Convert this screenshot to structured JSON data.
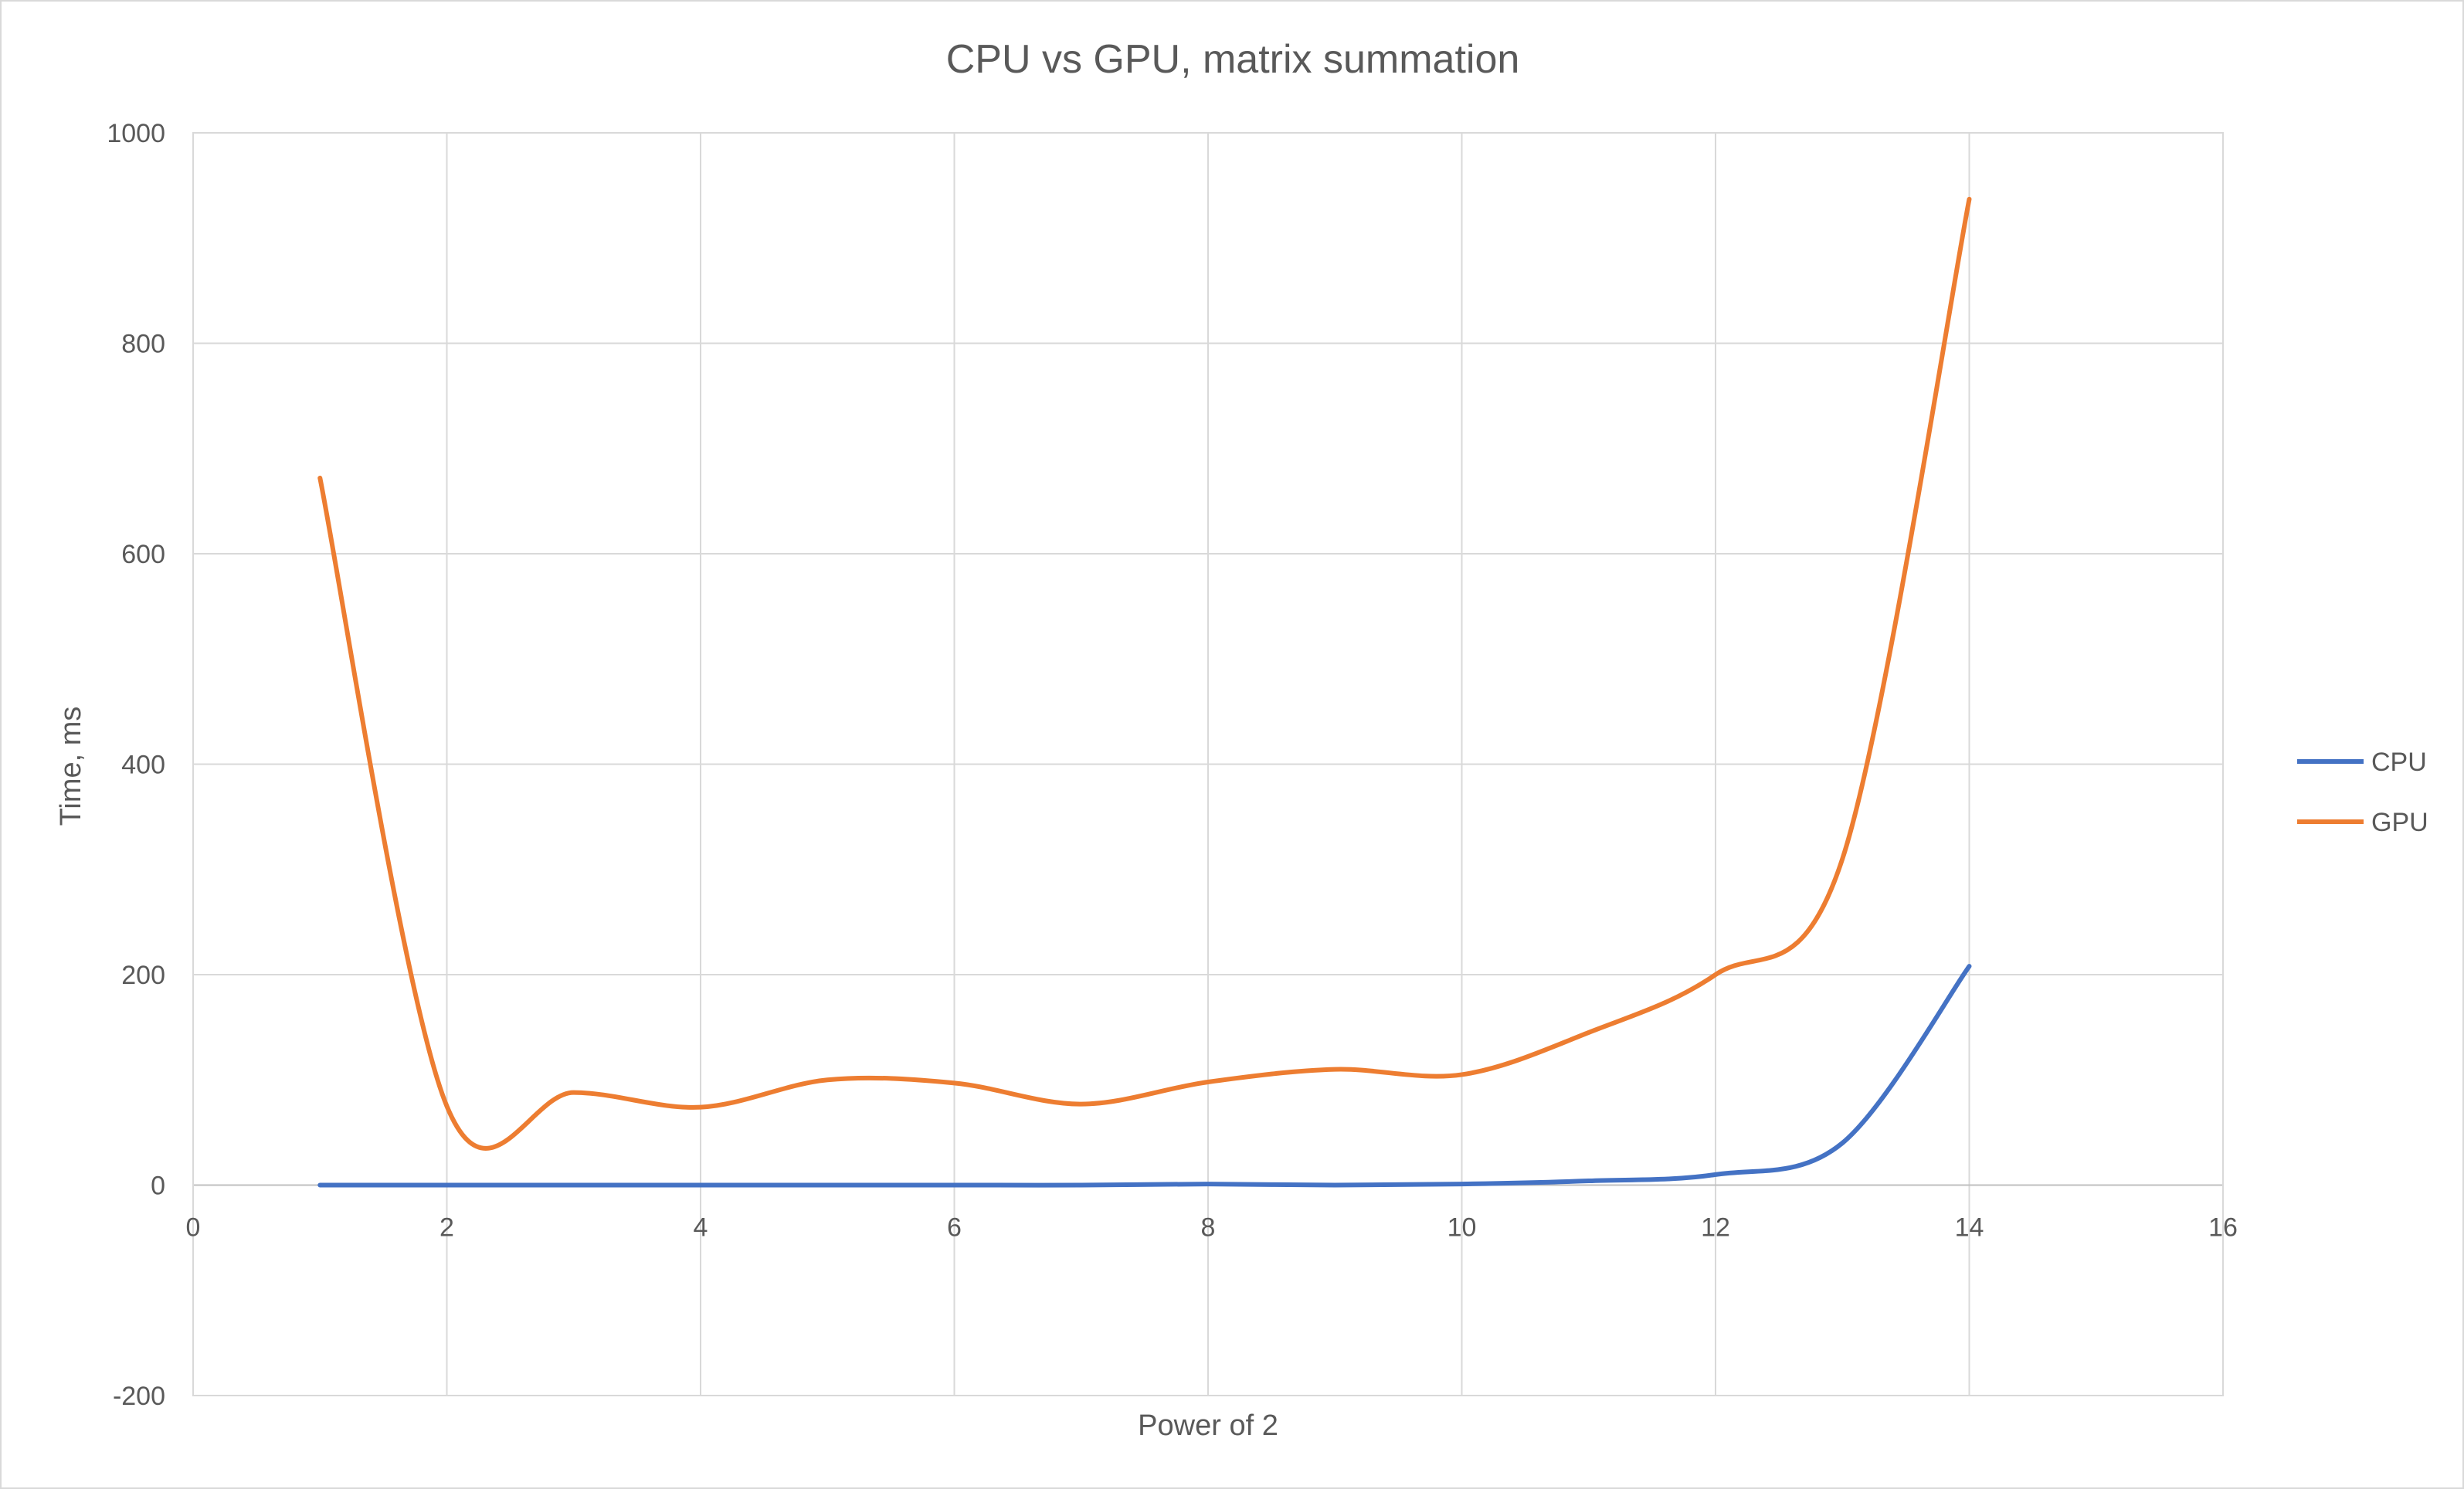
{
  "chart_data": {
    "type": "line",
    "title": "CPU vs GPU, matrix summation",
    "xlabel": "Power of 2",
    "ylabel": "Time, ms",
    "xlim": [
      0,
      16
    ],
    "ylim": [
      -200,
      1000
    ],
    "xticks": [
      0,
      2,
      4,
      6,
      8,
      10,
      12,
      14,
      16
    ],
    "yticks": [
      -200,
      0,
      200,
      400,
      600,
      800,
      1000
    ],
    "grid": true,
    "smooth": true,
    "legend_position": "right",
    "x": [
      1,
      2,
      3,
      4,
      5,
      6,
      7,
      8,
      9,
      10,
      11,
      12,
      13,
      14
    ],
    "series": [
      {
        "name": "CPU",
        "color": "#4472c4",
        "values": [
          0,
          0,
          0,
          0,
          0,
          0,
          0,
          1,
          0,
          1,
          4,
          10,
          40,
          208
        ]
      },
      {
        "name": "GPU",
        "color": "#ed7d31",
        "values": [
          672,
          75,
          88,
          74,
          100,
          97,
          77,
          98,
          110,
          105,
          145,
          200,
          310,
          937
        ]
      }
    ]
  }
}
